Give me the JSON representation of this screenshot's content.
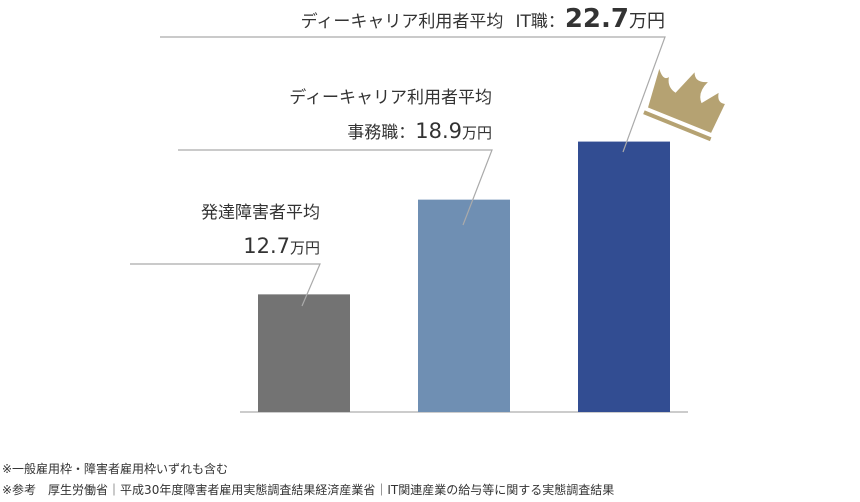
{
  "chart_data": {
    "type": "bar",
    "categories": [
      "発達障害者平均",
      "ディーキャリア利用者平均 事務職",
      "ディーキャリア利用者平均 IT職"
    ],
    "values": [
      12.7,
      18.9,
      22.7
    ],
    "unit": "万円",
    "colors": [
      "#737373",
      "#6f8fb3",
      "#324d92"
    ],
    "ylim": [
      5,
      23
    ],
    "grid": false,
    "labels": [
      {
        "line1": "発達障害者平均",
        "prefix": "",
        "value": "12.7",
        "unit": "万円"
      },
      {
        "line1": "ディーキャリア利用者平均",
        "prefix": "事務職：",
        "value": "18.9",
        "unit": "万円"
      },
      {
        "line1": "ディーキャリア利用者平均",
        "prefix": "IT職：",
        "value": "22.7",
        "unit": "万円"
      }
    ],
    "highlight_icon": "crown-icon",
    "highlight_color": "#b5a272"
  },
  "footnotes": [
    "※一般雇用枠・障害者雇用枠いずれも含む",
    "※参考　厚生労働省｜平成30年度障害者雇用実態調査結果経済産業省｜IT関連産業の給与等に関する実態調査結果"
  ]
}
